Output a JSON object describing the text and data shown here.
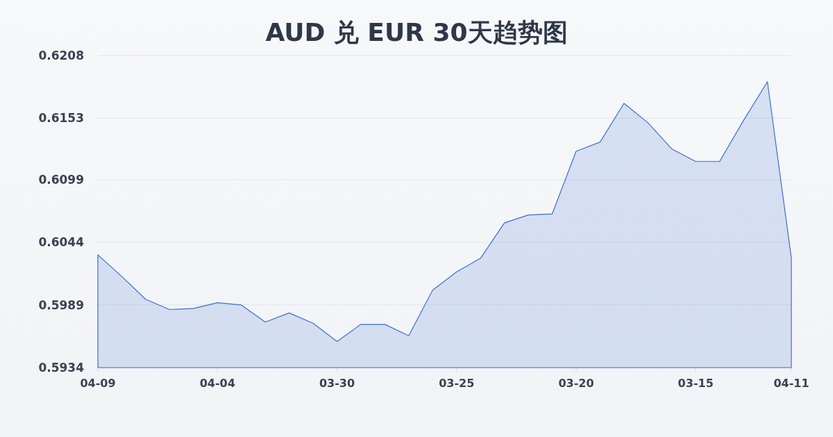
{
  "chart_data": {
    "type": "area",
    "title": "AUD 兑 EUR 30天趋势图",
    "categories": [
      "04-09",
      null,
      null,
      null,
      null,
      "04-04",
      null,
      null,
      null,
      null,
      "03-30",
      null,
      null,
      null,
      null,
      "03-25",
      null,
      null,
      null,
      null,
      "03-20",
      null,
      null,
      null,
      null,
      "03-15",
      null,
      null,
      null,
      "04-11"
    ],
    "series": [
      {
        "color": "#3a6fd0",
        "values": [
          0.6033,
          0.6014,
          0.5994,
          0.5985,
          0.5986,
          0.5991,
          0.5989,
          0.5974,
          0.5982,
          0.5973,
          0.5957,
          0.5972,
          0.5972,
          0.5962,
          0.6002,
          0.6018,
          0.603,
          0.6061,
          0.6068,
          0.6069,
          0.6124,
          0.6132,
          0.6166,
          0.6149,
          0.6126,
          0.6115,
          0.6115,
          0.6151,
          0.6185,
          0.603
        ]
      }
    ],
    "ylim": [
      0.5934,
      0.6208
    ],
    "yticks": [
      0.5934,
      0.5989,
      0.6044,
      0.6099,
      0.6153,
      0.6208
    ],
    "grid": "y"
  }
}
